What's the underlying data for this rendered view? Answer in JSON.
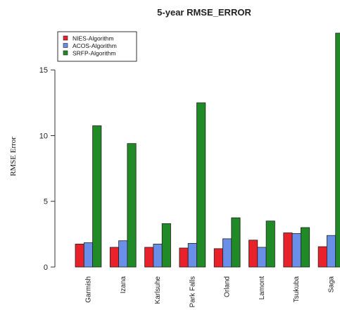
{
  "chart_data": {
    "type": "bar",
    "title": "5-year RMSE_ERROR",
    "xlabel": "",
    "ylabel": "RMSE Error",
    "categories": [
      "Garmish",
      "Izana",
      "Karlsuhe",
      "Park Falls",
      "Orland",
      "Lamont",
      "Tsukuba",
      "Saga"
    ],
    "series": [
      {
        "name": "NIES-Algorithm",
        "color": "#e8212b",
        "values": [
          1.75,
          1.5,
          1.5,
          1.45,
          1.4,
          2.05,
          2.6,
          1.55
        ]
      },
      {
        "name": "ACOS-Algorithm",
        "color": "#6a8fe8",
        "values": [
          1.85,
          2.0,
          1.75,
          1.8,
          2.15,
          1.5,
          2.55,
          2.4
        ]
      },
      {
        "name": "SRFP-Algorithm",
        "color": "#1f8a26",
        "values": [
          10.75,
          9.4,
          3.3,
          12.5,
          3.75,
          3.5,
          3.0,
          17.8
        ]
      }
    ],
    "yticks": [
      0,
      5,
      10,
      15
    ],
    "ylim": [
      0,
      17.8
    ],
    "legend_position": "top-left",
    "grid": false
  }
}
